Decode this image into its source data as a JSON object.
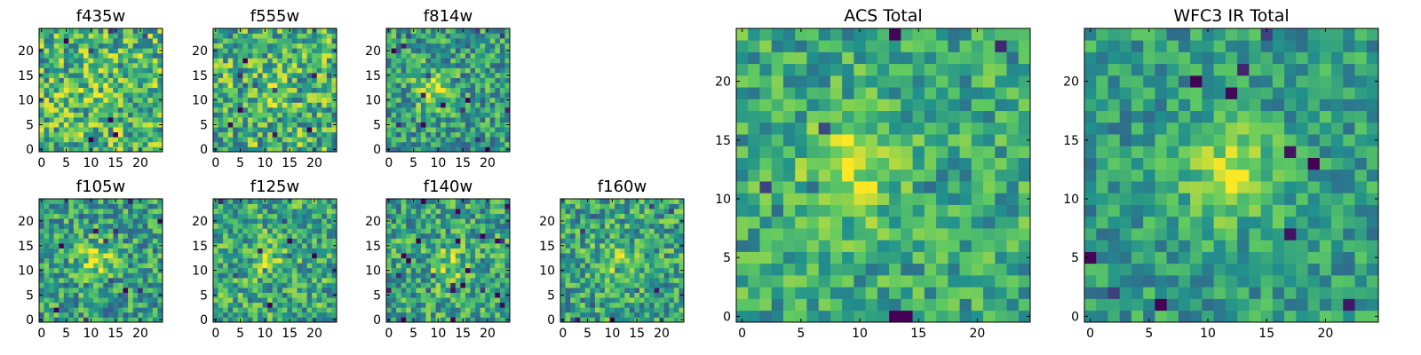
{
  "colors": {
    "colormap": "viridis",
    "background": "#ffffff",
    "axes": "#000000",
    "cmap_stops": [
      "#440154",
      "#3b528b",
      "#21918c",
      "#5ec962",
      "#fde725"
    ]
  },
  "chart_data": [
    {
      "type": "heatmap",
      "title": "f435w",
      "grid_size": 25,
      "xlim": [
        0,
        25
      ],
      "ylim": [
        0,
        25
      ],
      "xticks": [
        0,
        5,
        10,
        15,
        20
      ],
      "yticks": [
        0,
        5,
        10,
        15,
        20
      ],
      "grid": false,
      "peak": [
        12,
        12
      ],
      "peak_strength": 0.08,
      "noise": 0.65,
      "baseline": 0.66,
      "seed": 11
    },
    {
      "type": "heatmap",
      "title": "f555w",
      "grid_size": 25,
      "xlim": [
        0,
        25
      ],
      "ylim": [
        0,
        25
      ],
      "xticks": [
        0,
        5,
        10,
        15,
        20
      ],
      "yticks": [
        0,
        5,
        10,
        15,
        20
      ],
      "grid": false,
      "peak": [
        10,
        12
      ],
      "peak_strength": 0.12,
      "noise": 0.65,
      "baseline": 0.64,
      "seed": 23
    },
    {
      "type": "heatmap",
      "title": "f814w",
      "grid_size": 25,
      "xlim": [
        0,
        25
      ],
      "ylim": [
        0,
        25
      ],
      "xticks": [
        0,
        5,
        10,
        15,
        20
      ],
      "yticks": [
        0,
        5,
        10,
        15,
        20
      ],
      "grid": false,
      "peak": [
        9,
        12
      ],
      "peak_strength": 0.35,
      "noise": 0.55,
      "baseline": 0.55,
      "seed": 37
    },
    {
      "type": "heatmap",
      "title": "f105w",
      "grid_size": 25,
      "xlim": [
        0,
        25
      ],
      "ylim": [
        0,
        25
      ],
      "xticks": [
        0,
        5,
        10,
        15,
        20
      ],
      "yticks": [
        0,
        5,
        10,
        15,
        20
      ],
      "grid": false,
      "peak": [
        11,
        12
      ],
      "peak_strength": 0.3,
      "noise": 0.55,
      "baseline": 0.56,
      "seed": 41
    },
    {
      "type": "heatmap",
      "title": "f125w",
      "grid_size": 25,
      "xlim": [
        0,
        25
      ],
      "ylim": [
        0,
        25
      ],
      "xticks": [
        0,
        5,
        10,
        15,
        20
      ],
      "yticks": [
        0,
        5,
        10,
        15,
        20
      ],
      "grid": false,
      "peak": [
        11,
        12
      ],
      "peak_strength": 0.18,
      "noise": 0.55,
      "baseline": 0.6,
      "seed": 53
    },
    {
      "type": "heatmap",
      "title": "f140w",
      "grid_size": 25,
      "xlim": [
        0,
        25
      ],
      "ylim": [
        0,
        25
      ],
      "xticks": [
        0,
        5,
        10,
        15,
        20
      ],
      "yticks": [
        0,
        5,
        10,
        15,
        20
      ],
      "grid": false,
      "peak": [
        12,
        11
      ],
      "peak_strength": 0.22,
      "noise": 0.55,
      "baseline": 0.58,
      "seed": 67
    },
    {
      "type": "heatmap",
      "title": "f160w",
      "grid_size": 25,
      "xlim": [
        0,
        25
      ],
      "ylim": [
        0,
        25
      ],
      "xticks": [
        0,
        5,
        10,
        15,
        20
      ],
      "yticks": [
        0,
        5,
        10,
        15,
        20
      ],
      "grid": false,
      "peak": [
        11,
        12
      ],
      "peak_strength": 0.25,
      "noise": 0.55,
      "baseline": 0.58,
      "seed": 79
    },
    {
      "type": "heatmap",
      "title": "ACS Total",
      "grid_size": 25,
      "xlim": [
        0,
        25
      ],
      "ylim": [
        0,
        25
      ],
      "xticks": [
        0,
        5,
        10,
        15,
        20
      ],
      "yticks": [
        0,
        5,
        10,
        15,
        20
      ],
      "grid": false,
      "peak": [
        9,
        12
      ],
      "peak_strength": 0.35,
      "noise": 0.45,
      "baseline": 0.6,
      "seed": 97
    },
    {
      "type": "heatmap",
      "title": "WFC3 IR Total",
      "grid_size": 25,
      "xlim": [
        0,
        25
      ],
      "ylim": [
        0,
        25
      ],
      "xticks": [
        0,
        5,
        10,
        15,
        20
      ],
      "yticks": [
        0,
        5,
        10,
        15,
        20
      ],
      "grid": false,
      "peak": [
        12,
        12
      ],
      "peak_strength": 0.4,
      "noise": 0.4,
      "baseline": 0.55,
      "seed": 113
    }
  ]
}
